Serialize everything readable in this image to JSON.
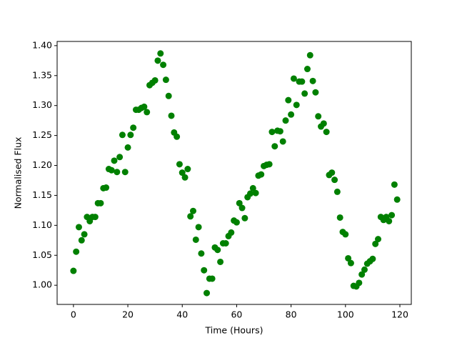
{
  "chart_data": {
    "type": "scatter",
    "xlabel": "Time (Hours)",
    "ylabel": "Normalised Flux",
    "color": "#008000",
    "x": [
      0,
      1,
      2,
      3,
      4,
      5,
      6,
      7,
      8,
      9,
      10,
      11,
      12,
      13,
      14,
      15,
      16,
      17,
      18,
      19,
      20,
      21,
      22,
      23,
      24,
      25,
      26,
      27,
      28,
      29,
      30,
      31,
      32,
      33,
      34,
      35,
      36,
      37,
      38,
      39,
      40,
      41,
      42,
      43,
      44,
      45,
      46,
      47,
      48,
      49,
      50,
      51,
      52,
      53,
      54,
      55,
      56,
      57,
      58,
      59,
      60,
      61,
      62,
      63,
      64,
      65,
      66,
      67,
      68,
      69,
      70,
      71,
      72,
      73,
      74,
      75,
      76,
      77,
      78,
      79,
      80,
      81,
      82,
      83,
      84,
      85,
      86,
      87,
      88,
      89,
      90,
      91,
      92,
      93,
      94,
      95,
      96,
      97,
      98,
      99,
      100,
      101,
      102,
      103,
      104,
      105,
      106,
      107,
      108,
      109,
      110,
      111,
      112,
      113,
      114,
      115,
      116,
      117,
      118,
      119
    ],
    "values": [
      1.024,
      1.056,
      1.097,
      1.075,
      1.085,
      1.114,
      1.107,
      1.114,
      1.114,
      1.137,
      1.137,
      1.162,
      1.163,
      1.194,
      1.192,
      1.208,
      1.189,
      1.214,
      1.251,
      1.189,
      1.23,
      1.251,
      1.263,
      1.293,
      1.293,
      1.296,
      1.298,
      1.289,
      1.334,
      1.338,
      1.342,
      1.375,
      1.387,
      1.368,
      1.343,
      1.316,
      1.283,
      1.255,
      1.248,
      1.202,
      1.188,
      1.18,
      1.194,
      1.115,
      1.124,
      1.076,
      1.097,
      1.053,
      1.025,
      0.987,
      1.011,
      1.011,
      1.063,
      1.059,
      1.039,
      1.07,
      1.07,
      1.082,
      1.088,
      1.108,
      1.105,
      1.137,
      1.129,
      1.112,
      1.147,
      1.153,
      1.162,
      1.154,
      1.183,
      1.185,
      1.199,
      1.201,
      1.202,
      1.256,
      1.232,
      1.258,
      1.257,
      1.24,
      1.275,
      1.309,
      1.285,
      1.345,
      1.301,
      1.34,
      1.34,
      1.32,
      1.361,
      1.384,
      1.341,
      1.322,
      1.282,
      1.265,
      1.27,
      1.256,
      1.184,
      1.188,
      1.176,
      1.156,
      1.113,
      1.089,
      1.085,
      1.045,
      1.037,
      0.999,
      0.998,
      1.004,
      1.018,
      1.026,
      1.036,
      1.04,
      1.044,
      1.069,
      1.077,
      1.114,
      1.109,
      1.114,
      1.107,
      1.117,
      1.168,
      1.143
    ],
    "xlim": [
      -6.0,
      124.2
    ],
    "ylim": [
      0.968,
      1.407
    ],
    "xticks": [
      0,
      20,
      40,
      60,
      80,
      100,
      120
    ],
    "yticks": [
      {
        "value": 1.0,
        "label": "1.00"
      },
      {
        "value": 1.05,
        "label": "1.05"
      },
      {
        "value": 1.1,
        "label": "1.10"
      },
      {
        "value": 1.15,
        "label": "1.15"
      },
      {
        "value": 1.2,
        "label": "1.20"
      },
      {
        "value": 1.25,
        "label": "1.25"
      },
      {
        "value": 1.3,
        "label": "1.30"
      },
      {
        "value": 1.35,
        "label": "1.35"
      },
      {
        "value": 1.4,
        "label": "1.40"
      }
    ],
    "grid": false
  }
}
